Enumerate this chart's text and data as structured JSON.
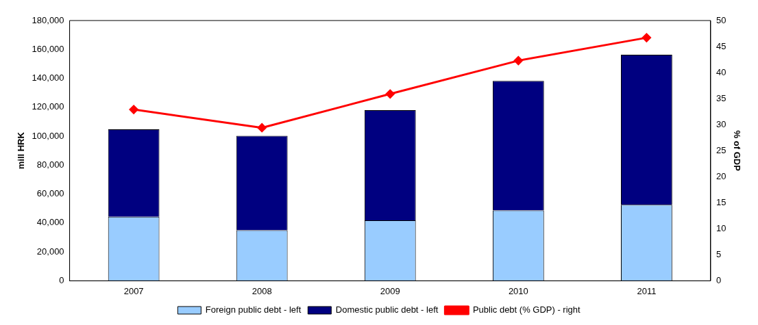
{
  "chart_data": {
    "type": "bar",
    "stacked": true,
    "categories": [
      "2007",
      "2008",
      "2009",
      "2010",
      "2011"
    ],
    "series": [
      {
        "name": "Foreign public debt - left",
        "color": "#99ccff",
        "values": [
          44300,
          35000,
          41800,
          48700,
          52600
        ]
      },
      {
        "name": "Domestic public debt - left",
        "color": "#000080",
        "values": [
          60500,
          65300,
          76200,
          89500,
          103800
        ]
      },
      {
        "name": "Public debt (% GDP) - right",
        "type": "line",
        "axis": "y2",
        "color": "#ff0000",
        "marker": "diamond",
        "values": [
          32.9,
          29.4,
          35.9,
          42.3,
          46.7
        ]
      }
    ],
    "ylabel": "mill HRK",
    "y2label": "% of GDP",
    "ylim": [
      0,
      180000
    ],
    "yticks": [
      0,
      {
        "value": 20000,
        "label": "20,000"
      },
      {
        "value": 40000,
        "label": "40,000"
      },
      {
        "value": 60000,
        "label": "60,000"
      },
      {
        "value": 80000,
        "label": "80,000"
      },
      {
        "value": 100000,
        "label": "100,000"
      },
      {
        "value": 120000,
        "label": "120,000"
      },
      {
        "value": 140000,
        "label": "140,000"
      },
      {
        "value": 160000,
        "label": "160,000"
      },
      {
        "value": 180000,
        "label": "180,000"
      }
    ],
    "y2lim": [
      0,
      50
    ],
    "y2ticks": [
      0,
      5,
      10,
      15,
      20,
      25,
      30,
      35,
      40,
      45,
      50
    ],
    "grid": false,
    "legend": "bottom"
  }
}
